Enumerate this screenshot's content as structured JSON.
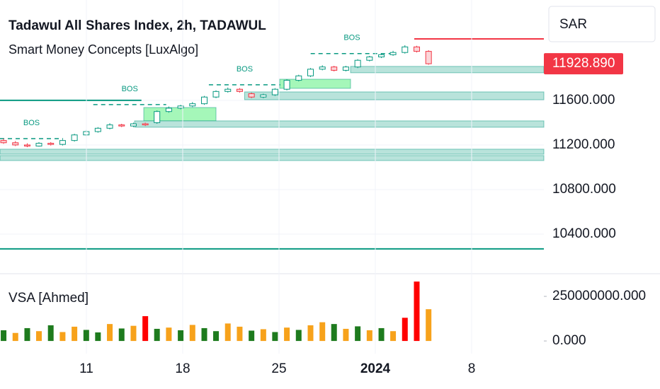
{
  "toolbar": {
    "currency": "SAR"
  },
  "chart_data": [
    {
      "type": "candlestick",
      "title": "Tadawul All Shares Index, 2h, TADAWUL",
      "subtitle": "Smart Money Concepts [LuxAlgo]",
      "up_color": "#089981",
      "down_color": "#f23645",
      "x": [
        4.98,
        5.84,
        6.7,
        7.55,
        8.41,
        9.27,
        10.13,
        10.99,
        11.84,
        12.7,
        13.56,
        14.42,
        15.28,
        16.13,
        16.99,
        17.85,
        18.71,
        19.57,
        20.42,
        21.28,
        22.14,
        23.0,
        23.86,
        24.71,
        25.57,
        26.43,
        27.29,
        28.15,
        29.0,
        29.86,
        30.72,
        31.58,
        32.44,
        33.29,
        34.15,
        35.01,
        35.87
      ],
      "open": [
        11240,
        11220,
        11200,
        11190,
        11215,
        11205,
        11240,
        11290,
        11320,
        11350,
        11380,
        11370,
        11390,
        11400,
        11500,
        11530,
        11550,
        11570,
        11630,
        11680,
        11700,
        11660,
        11630,
        11650,
        11700,
        11780,
        11820,
        11880,
        11900,
        11870,
        11900,
        11960,
        11990,
        12010,
        12030,
        12080,
        12040
      ],
      "high": [
        11255,
        11235,
        11215,
        11225,
        11225,
        11250,
        11300,
        11335,
        11360,
        11395,
        11390,
        11400,
        11400,
        11510,
        11545,
        11560,
        11585,
        11640,
        11690,
        11715,
        11710,
        11670,
        11660,
        11710,
        11790,
        11830,
        11890,
        11915,
        11910,
        11910,
        11970,
        12000,
        12020,
        12045,
        12095,
        12090,
        12050
      ],
      "low": [
        11210,
        11190,
        11180,
        11185,
        11195,
        11195,
        11230,
        11280,
        11310,
        11340,
        11360,
        11360,
        11370,
        11390,
        11490,
        11520,
        11540,
        11560,
        11620,
        11670,
        11670,
        11620,
        11620,
        11640,
        11690,
        11770,
        11810,
        11870,
        11860,
        11860,
        11890,
        11950,
        11980,
        12000,
        12020,
        12030,
        11920
      ],
      "close": [
        11220,
        11200,
        11190,
        11215,
        11205,
        11240,
        11290,
        11320,
        11350,
        11380,
        11370,
        11390,
        11380,
        11500,
        11530,
        11550,
        11570,
        11630,
        11680,
        11700,
        11680,
        11630,
        11650,
        11700,
        11780,
        11820,
        11880,
        11900,
        11870,
        11900,
        11960,
        11990,
        12010,
        12030,
        12080,
        12040,
        11928.89
      ],
      "last_price": {
        "value": 11928.89,
        "label": "11928.890",
        "color": "#f23645"
      },
      "xlim": [
        4.72,
        44.25
      ],
      "ylim": [
        10057,
        12501
      ],
      "yticks": [
        {
          "value": 11600,
          "label": "11600.000"
        },
        {
          "value": 11200,
          "label": "11200.000"
        },
        {
          "value": 10800,
          "label": "10800.000"
        },
        {
          "value": 10400,
          "label": "10400.000"
        }
      ],
      "grid": true,
      "zones": [
        {
          "x0": 15.17,
          "x1": 20.42,
          "low": 11416,
          "high": 11536,
          "color": "#8ef5a8"
        },
        {
          "x0": 25.05,
          "x1": 30.2,
          "low": 11708,
          "high": 11790,
          "color": "#8ef5a8"
        },
        {
          "x0": 30.2,
          "x1": 44.25,
          "low": 11848,
          "high": 11905,
          "color": "#a8dcd2"
        },
        {
          "x0": 22.5,
          "x1": 44.25,
          "low": 11606,
          "high": 11676,
          "color": "#a8dcd2"
        },
        {
          "x0": 14.5,
          "x1": 44.25,
          "low": 11359,
          "high": 11416,
          "color": "#a8dcd2"
        },
        {
          "x0": 4.72,
          "x1": 44.25,
          "low": 11117,
          "high": 11162,
          "color": "#a8dcd2"
        },
        {
          "x0": 4.72,
          "x1": 44.25,
          "low": 11060,
          "high": 11105,
          "color": "#a8dcd2"
        }
      ],
      "levels": [
        {
          "x0": 4.72,
          "x1": 15.0,
          "value": 11600,
          "color": "#089981"
        },
        {
          "x0": 4.72,
          "x1": 44.25,
          "value": 10267,
          "color": "#089981"
        },
        {
          "x0": 34.83,
          "x1": 44.25,
          "value": 12152,
          "color": "#f23645"
        }
      ],
      "bos": [
        {
          "label": "BOS",
          "x0": 4.72,
          "x1": 9.3,
          "value": 11257
        },
        {
          "label": "BOS",
          "x0": 11.5,
          "x1": 16.8,
          "value": 11562
        },
        {
          "label": "BOS",
          "x0": 19.9,
          "x1": 25.1,
          "value": 11740
        },
        {
          "label": "BOS",
          "x0": 27.3,
          "x1": 33.3,
          "value": 12020
        }
      ]
    },
    {
      "type": "bar",
      "title": "VSA [Ahmed]",
      "x": [
        4.98,
        5.84,
        6.7,
        7.55,
        8.41,
        9.27,
        10.13,
        10.99,
        11.84,
        12.7,
        13.56,
        14.42,
        15.28,
        16.13,
        16.99,
        17.85,
        18.71,
        19.57,
        20.42,
        21.28,
        22.14,
        23.0,
        23.86,
        24.71,
        25.57,
        26.43,
        27.29,
        28.15,
        29.0,
        29.86,
        30.72,
        31.58,
        32.44,
        33.29,
        34.15,
        35.01,
        35.87
      ],
      "values": [
        60000000,
        45000000,
        72000000,
        55000000,
        88000000,
        50000000,
        80000000,
        62000000,
        48000000,
        95000000,
        70000000,
        85000000,
        139000000,
        68000000,
        75000000,
        60000000,
        90000000,
        72000000,
        55000000,
        98000000,
        80000000,
        58000000,
        66000000,
        50000000,
        75000000,
        62000000,
        88000000,
        105000000,
        95000000,
        68000000,
        82000000,
        60000000,
        72000000,
        55000000,
        130000000,
        333000000,
        178000000
      ],
      "colors": [
        "#1e7b1e",
        "#f7a21b",
        "#1e7b1e",
        "#f7a21b",
        "#1e7b1e",
        "#f7a21b",
        "#f7a21b",
        "#1e7b1e",
        "#1e7b1e",
        "#f7a21b",
        "#1e7b1e",
        "#f7a21b",
        "#ff0000",
        "#1e7b1e",
        "#f7a21b",
        "#1e7b1e",
        "#f7a21b",
        "#1e7b1e",
        "#1e7b1e",
        "#f7a21b",
        "#f7a21b",
        "#1e7b1e",
        "#f7a21b",
        "#1e7b1e",
        "#f7a21b",
        "#1e7b1e",
        "#f7a21b",
        "#f7a21b",
        "#1e7b1e",
        "#f7a21b",
        "#1e7b1e",
        "#f7a21b",
        "#1e7b1e",
        "#f7a21b",
        "#ff0000",
        "#ff0000",
        "#f7a21b"
      ],
      "xlim": [
        4.72,
        44.25
      ],
      "ylim": [
        -71000000,
        373000000
      ],
      "yticks": [
        {
          "value": 250000000,
          "label": "250000000.000"
        },
        {
          "value": 0,
          "label": "0.000"
        }
      ],
      "xticks": [
        11,
        18,
        25,
        {
          "value": 32,
          "label": "2024"
        },
        {
          "value": 39,
          "label": "8"
        }
      ]
    }
  ]
}
